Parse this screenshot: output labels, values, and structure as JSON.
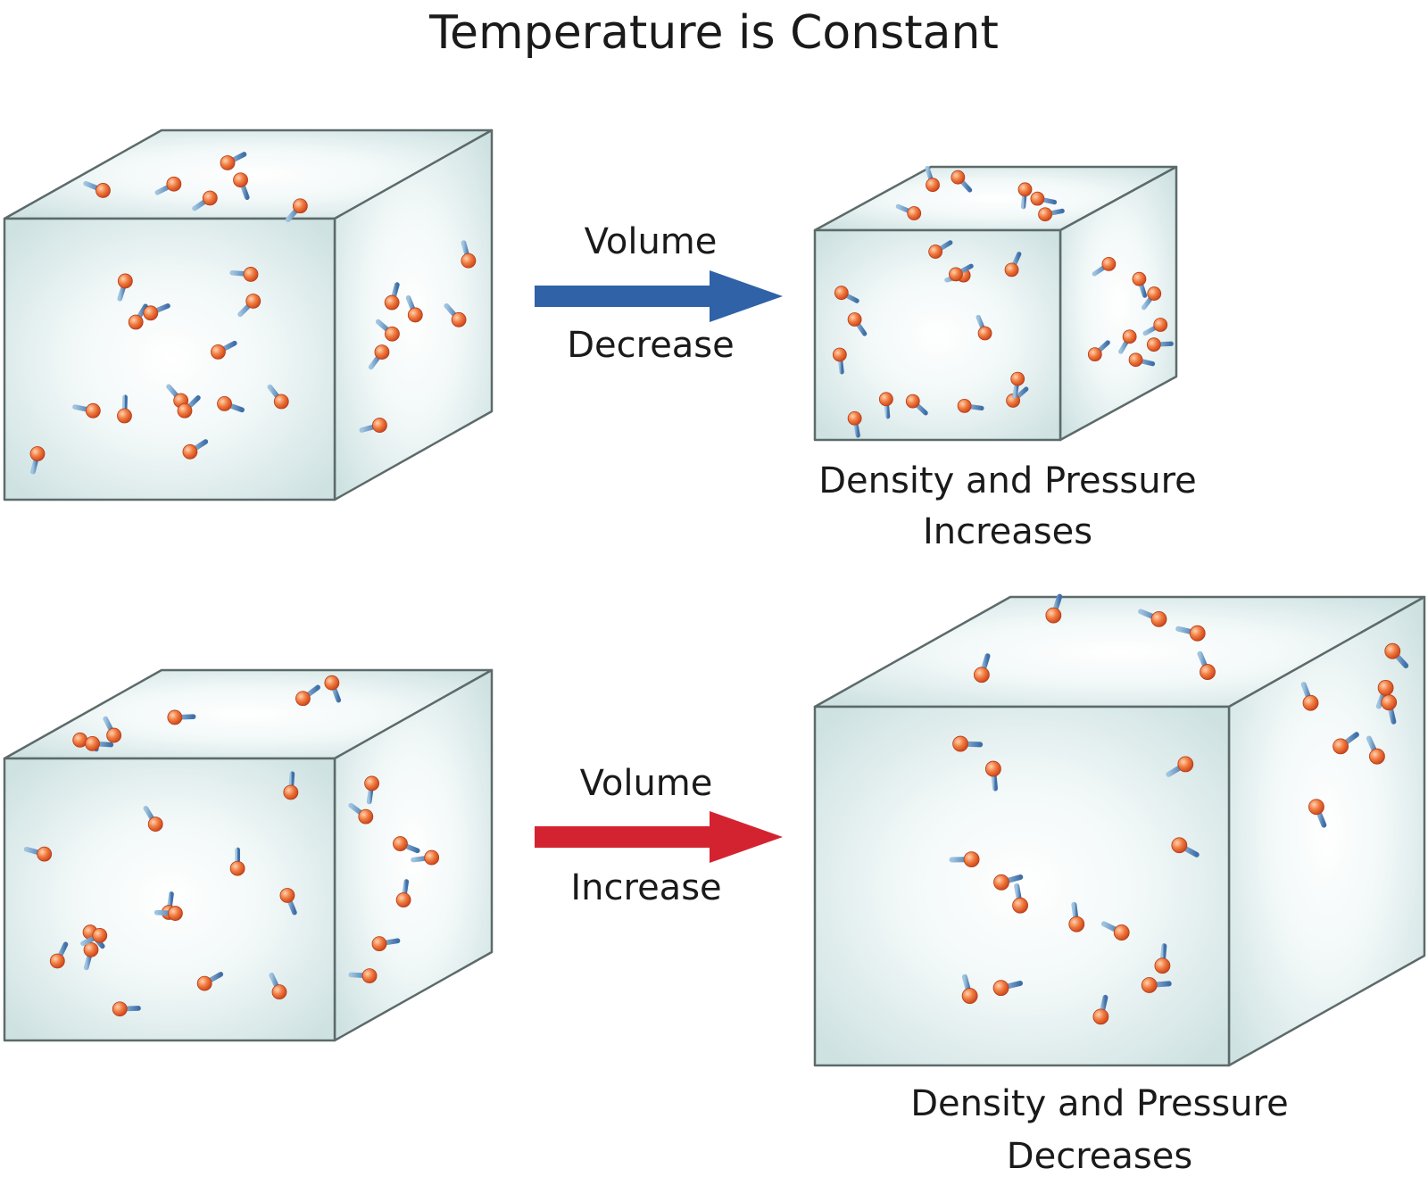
{
  "title": "Temperature is Constant",
  "panels": [
    {
      "arrow_top": "Volume",
      "arrow_bottom": "Decrease",
      "result_line1": "Density and Pressure",
      "result_line2": "Increases"
    },
    {
      "arrow_top": "Volume",
      "arrow_bottom": "Increase",
      "result_line1": "Density and Pressure",
      "result_line2": "Decreases"
    }
  ]
}
